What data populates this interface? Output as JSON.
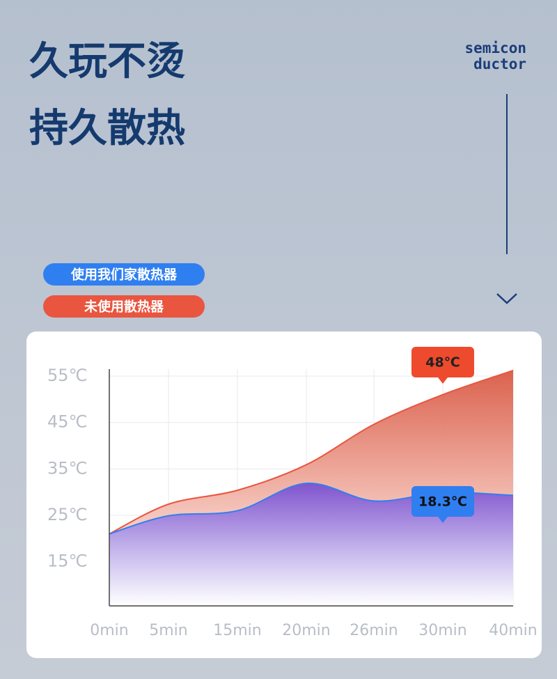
{
  "header": {
    "title_lines": [
      "久玩不烫",
      "持久散热"
    ],
    "brand_lines": [
      "semicon",
      "ductor"
    ]
  },
  "chart_data": {
    "type": "area",
    "categories": [
      "0min",
      "5min",
      "15min",
      "20min",
      "26min",
      "30min",
      "40min"
    ],
    "series": [
      {
        "name": "未使用散热器",
        "color": "#e9553f",
        "values": [
          21,
          27.4,
          30.4,
          35.9,
          44.6,
          51,
          56.2
        ]
      },
      {
        "name": "使用我们家散热器",
        "color": "#2f7ff0",
        "values": [
          21,
          24.9,
          26,
          31.9,
          28.1,
          29.9,
          29.3
        ]
      }
    ],
    "ylim": [
      5.5,
      56.5
    ],
    "yticks": [
      {
        "value": 15,
        "label": "15℃"
      },
      {
        "value": 25,
        "label": "25℃"
      },
      {
        "value": 35,
        "label": "35℃"
      },
      {
        "value": 45,
        "label": "45℃"
      },
      {
        "value": 55,
        "label": "55℃"
      }
    ],
    "grid": true,
    "annotations": [
      "48℃",
      "18.3℃"
    ]
  }
}
